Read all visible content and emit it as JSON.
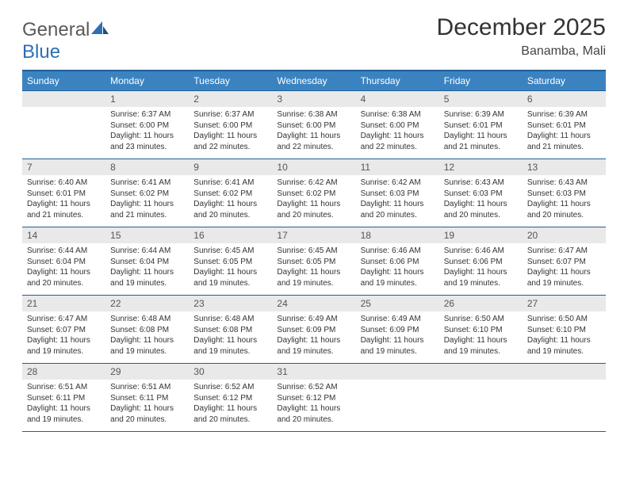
{
  "logo": {
    "text1": "General",
    "text2": "Blue"
  },
  "title": "December 2025",
  "location": "Banamba, Mali",
  "colors": {
    "header_bg": "#3b83c0",
    "header_border": "#1f5f9a",
    "daynum_bg": "#e9e9e9",
    "text": "#333333",
    "logo_grey": "#5a5a5a",
    "logo_blue": "#2d6fb3"
  },
  "weekdays": [
    "Sunday",
    "Monday",
    "Tuesday",
    "Wednesday",
    "Thursday",
    "Friday",
    "Saturday"
  ],
  "start_offset": 1,
  "days": [
    {
      "n": 1,
      "sr": "6:37 AM",
      "ss": "6:00 PM",
      "dl": "11 hours and 23 minutes."
    },
    {
      "n": 2,
      "sr": "6:37 AM",
      "ss": "6:00 PM",
      "dl": "11 hours and 22 minutes."
    },
    {
      "n": 3,
      "sr": "6:38 AM",
      "ss": "6:00 PM",
      "dl": "11 hours and 22 minutes."
    },
    {
      "n": 4,
      "sr": "6:38 AM",
      "ss": "6:00 PM",
      "dl": "11 hours and 22 minutes."
    },
    {
      "n": 5,
      "sr": "6:39 AM",
      "ss": "6:01 PM",
      "dl": "11 hours and 21 minutes."
    },
    {
      "n": 6,
      "sr": "6:39 AM",
      "ss": "6:01 PM",
      "dl": "11 hours and 21 minutes."
    },
    {
      "n": 7,
      "sr": "6:40 AM",
      "ss": "6:01 PM",
      "dl": "11 hours and 21 minutes."
    },
    {
      "n": 8,
      "sr": "6:41 AM",
      "ss": "6:02 PM",
      "dl": "11 hours and 21 minutes."
    },
    {
      "n": 9,
      "sr": "6:41 AM",
      "ss": "6:02 PM",
      "dl": "11 hours and 20 minutes."
    },
    {
      "n": 10,
      "sr": "6:42 AM",
      "ss": "6:02 PM",
      "dl": "11 hours and 20 minutes."
    },
    {
      "n": 11,
      "sr": "6:42 AM",
      "ss": "6:03 PM",
      "dl": "11 hours and 20 minutes."
    },
    {
      "n": 12,
      "sr": "6:43 AM",
      "ss": "6:03 PM",
      "dl": "11 hours and 20 minutes."
    },
    {
      "n": 13,
      "sr": "6:43 AM",
      "ss": "6:03 PM",
      "dl": "11 hours and 20 minutes."
    },
    {
      "n": 14,
      "sr": "6:44 AM",
      "ss": "6:04 PM",
      "dl": "11 hours and 20 minutes."
    },
    {
      "n": 15,
      "sr": "6:44 AM",
      "ss": "6:04 PM",
      "dl": "11 hours and 19 minutes."
    },
    {
      "n": 16,
      "sr": "6:45 AM",
      "ss": "6:05 PM",
      "dl": "11 hours and 19 minutes."
    },
    {
      "n": 17,
      "sr": "6:45 AM",
      "ss": "6:05 PM",
      "dl": "11 hours and 19 minutes."
    },
    {
      "n": 18,
      "sr": "6:46 AM",
      "ss": "6:06 PM",
      "dl": "11 hours and 19 minutes."
    },
    {
      "n": 19,
      "sr": "6:46 AM",
      "ss": "6:06 PM",
      "dl": "11 hours and 19 minutes."
    },
    {
      "n": 20,
      "sr": "6:47 AM",
      "ss": "6:07 PM",
      "dl": "11 hours and 19 minutes."
    },
    {
      "n": 21,
      "sr": "6:47 AM",
      "ss": "6:07 PM",
      "dl": "11 hours and 19 minutes."
    },
    {
      "n": 22,
      "sr": "6:48 AM",
      "ss": "6:08 PM",
      "dl": "11 hours and 19 minutes."
    },
    {
      "n": 23,
      "sr": "6:48 AM",
      "ss": "6:08 PM",
      "dl": "11 hours and 19 minutes."
    },
    {
      "n": 24,
      "sr": "6:49 AM",
      "ss": "6:09 PM",
      "dl": "11 hours and 19 minutes."
    },
    {
      "n": 25,
      "sr": "6:49 AM",
      "ss": "6:09 PM",
      "dl": "11 hours and 19 minutes."
    },
    {
      "n": 26,
      "sr": "6:50 AM",
      "ss": "6:10 PM",
      "dl": "11 hours and 19 minutes."
    },
    {
      "n": 27,
      "sr": "6:50 AM",
      "ss": "6:10 PM",
      "dl": "11 hours and 19 minutes."
    },
    {
      "n": 28,
      "sr": "6:51 AM",
      "ss": "6:11 PM",
      "dl": "11 hours and 19 minutes."
    },
    {
      "n": 29,
      "sr": "6:51 AM",
      "ss": "6:11 PM",
      "dl": "11 hours and 20 minutes."
    },
    {
      "n": 30,
      "sr": "6:52 AM",
      "ss": "6:12 PM",
      "dl": "11 hours and 20 minutes."
    },
    {
      "n": 31,
      "sr": "6:52 AM",
      "ss": "6:12 PM",
      "dl": "11 hours and 20 minutes."
    }
  ],
  "labels": {
    "sunrise": "Sunrise:",
    "sunset": "Sunset:",
    "daylight": "Daylight:"
  }
}
